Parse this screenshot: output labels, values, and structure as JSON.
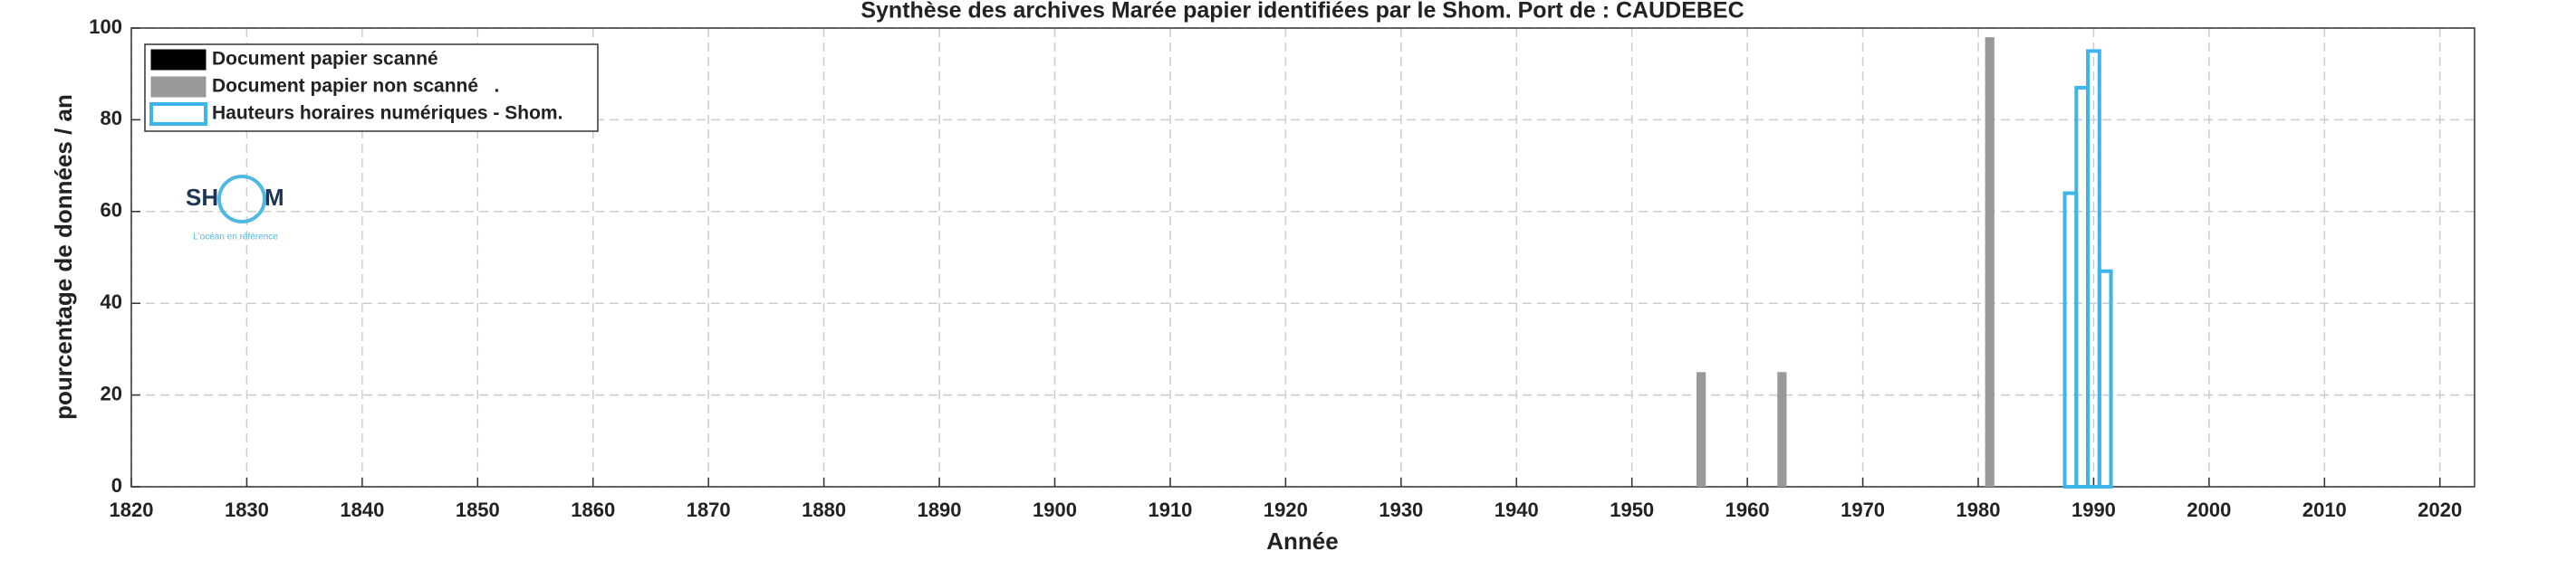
{
  "chart_data": {
    "type": "bar",
    "title": "Synthèse des archives Marée papier identifiées par le Shom. Port de : CAUDEBEC",
    "x_label": "Année",
    "y_label": "pourcentage de données / an",
    "xlim": [
      1820,
      2023
    ],
    "xticks": [
      1820,
      1830,
      1840,
      1850,
      1860,
      1870,
      1880,
      1890,
      1900,
      1910,
      1920,
      1930,
      1940,
      1950,
      1960,
      1970,
      1980,
      1990,
      2000,
      2010,
      2020
    ],
    "ylim": [
      0,
      100
    ],
    "yticks": [
      0,
      20,
      40,
      60,
      80,
      100
    ],
    "grid": true,
    "legend": "upper left",
    "series": [
      {
        "name": "Document papier scanné",
        "color": "#000000",
        "style": "filled",
        "x": [],
        "values": []
      },
      {
        "name": "Document papier non scanné   .",
        "color": "#999999",
        "style": "filled",
        "x": [
          1956,
          1963,
          1981
        ],
        "values": [
          25,
          25,
          98
        ]
      },
      {
        "name": "Hauteurs horaires numériques - Shom.",
        "color": "#3db4ea",
        "style": "outline",
        "x": [
          1987,
          1988,
          1989,
          1990,
          1991
        ],
        "values": [
          0,
          64,
          87,
          95,
          47
        ]
      }
    ]
  },
  "logo": {
    "left": "SH",
    "right": "M",
    "tagline": "L'océan en référence"
  }
}
